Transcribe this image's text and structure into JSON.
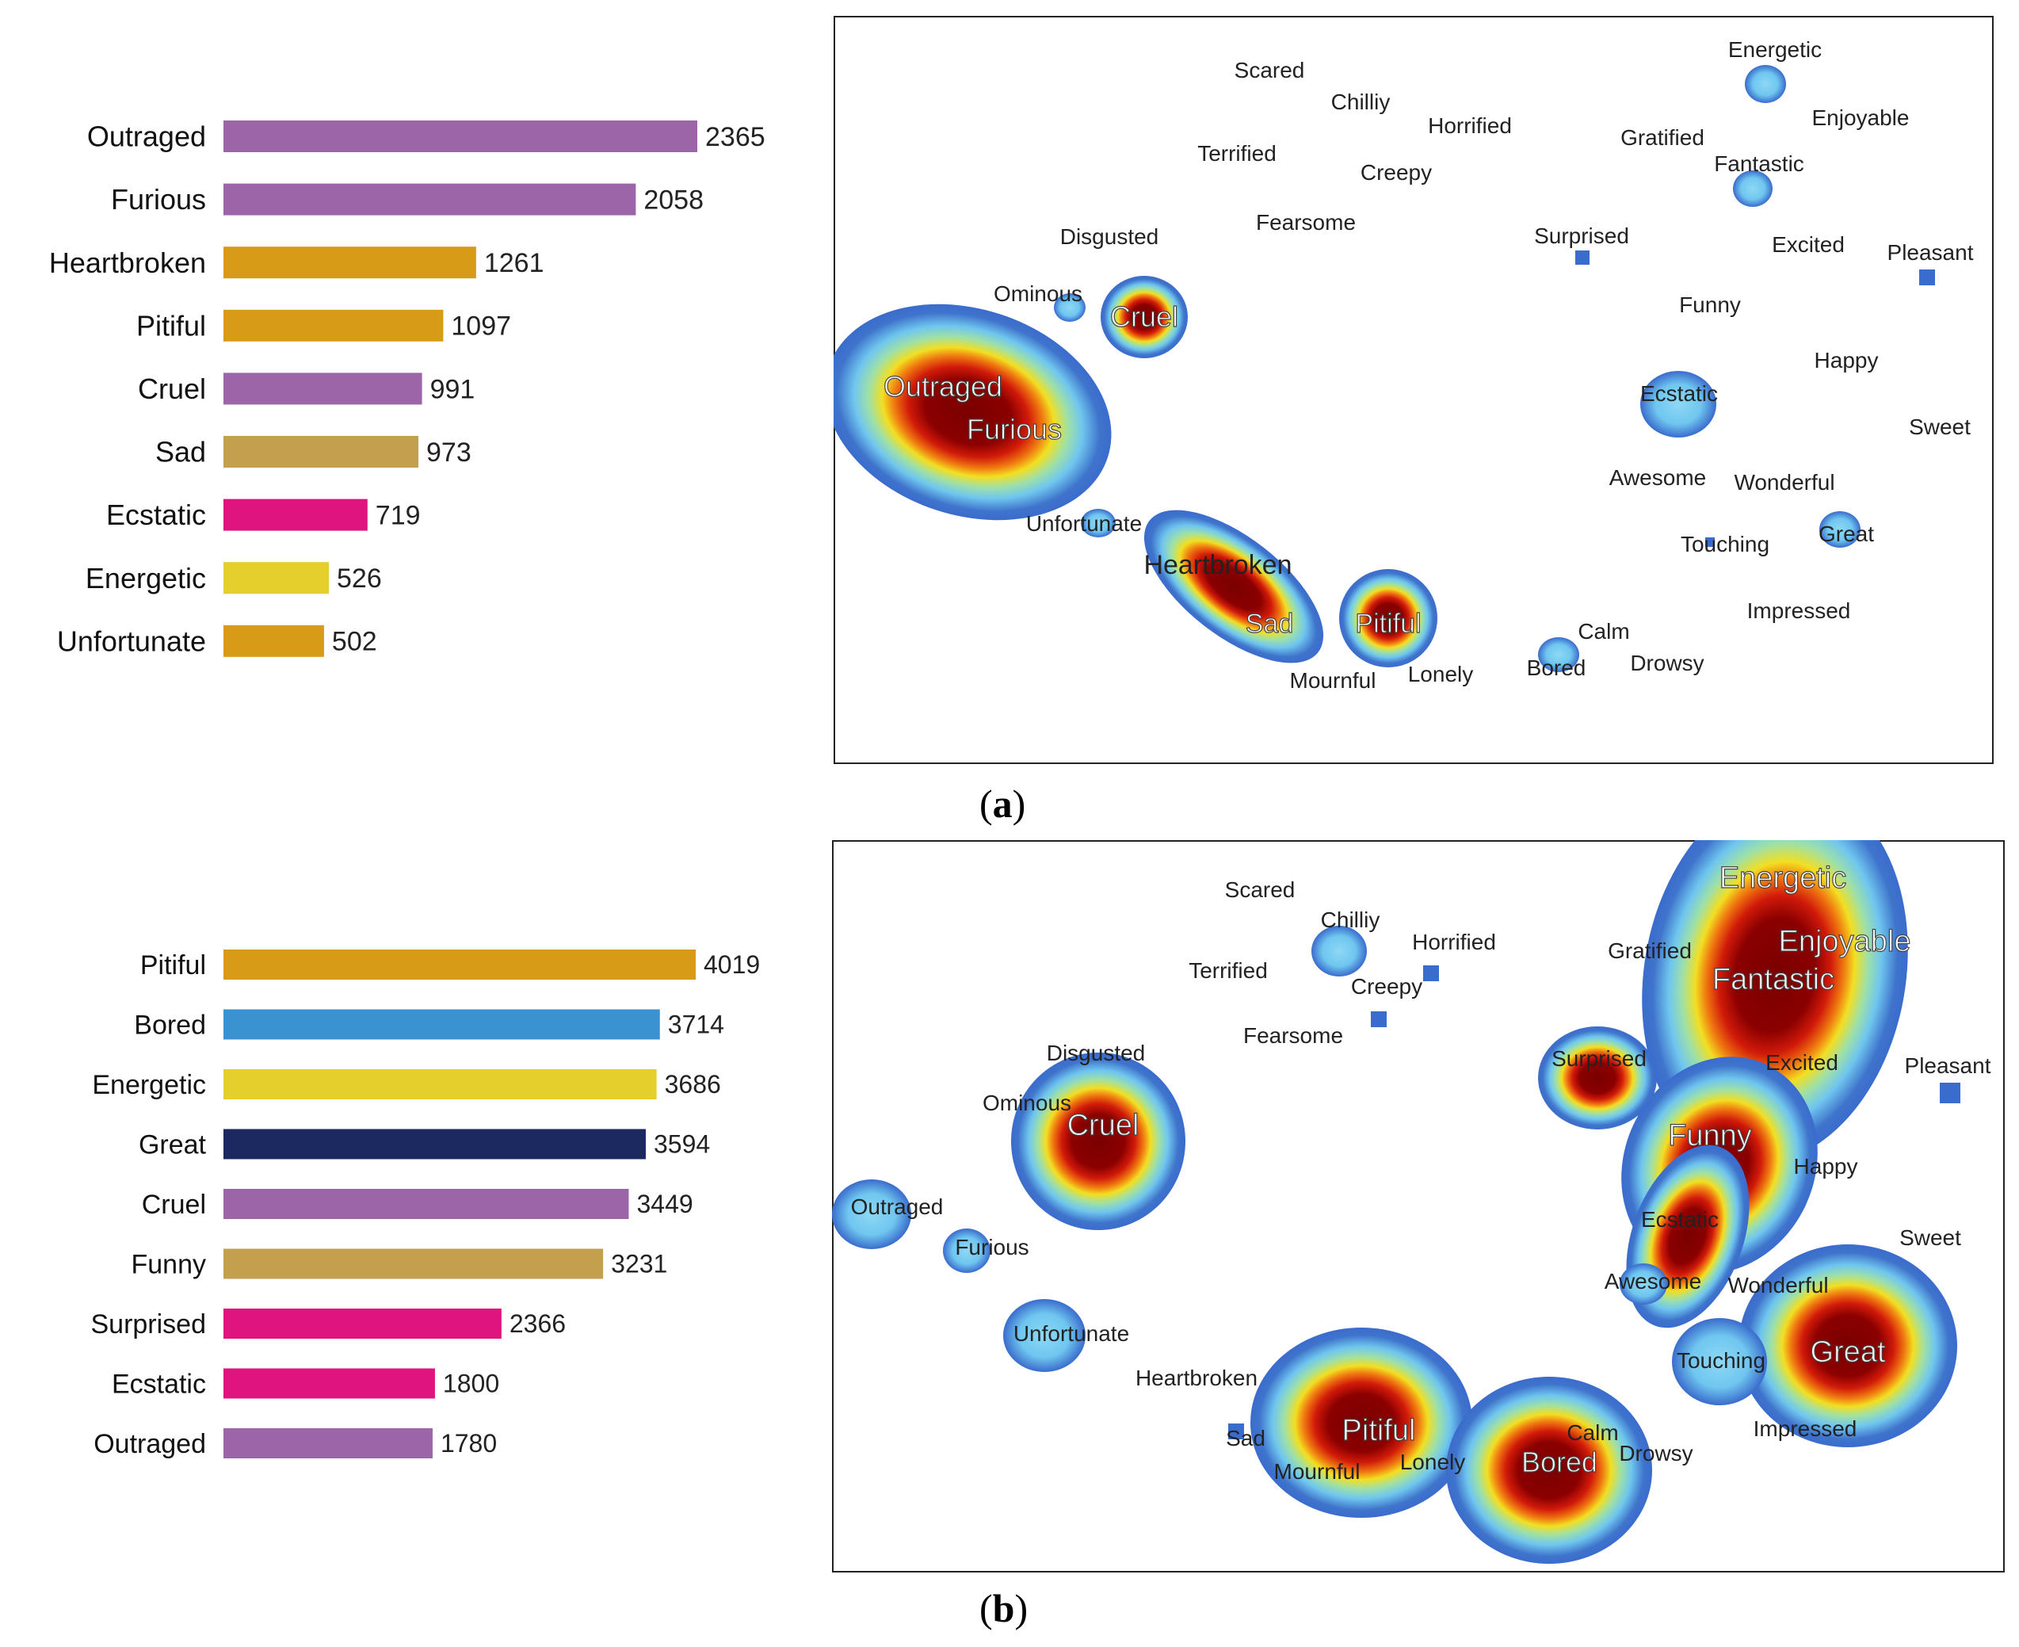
{
  "chart_data": [
    {
      "panel": "a",
      "type": "bar",
      "orientation": "horizontal",
      "categories": [
        "Outraged",
        "Furious",
        "Heartbroken",
        "Pitiful",
        "Cruel",
        "Sad",
        "Ecstatic",
        "Energetic",
        "Unfortunate"
      ],
      "values": [
        2365,
        2058,
        1261,
        1097,
        991,
        973,
        719,
        526,
        502
      ],
      "colors": [
        "#9b65a8",
        "#9b65a8",
        "#d89b18",
        "#d89b18",
        "#9b65a8",
        "#c4a04e",
        "#e0147f",
        "#e5cf2c",
        "#d89b18"
      ],
      "xlim": [
        0,
        2365
      ]
    },
    {
      "panel": "a",
      "type": "heatmap",
      "words": [
        "Scared",
        "Chilliy",
        "Horrified",
        "Terrified",
        "Creepy",
        "Fearsome",
        "Disgusted",
        "Ominous",
        "Cruel",
        "Outraged",
        "Furious",
        "Unfortunate",
        "Heartbroken",
        "Sad",
        "Pitiful",
        "Mournful",
        "Lonely",
        "Bored",
        "Calm",
        "Drowsy",
        "Energetic",
        "Enjoyable",
        "Gratified",
        "Fantastic",
        "Surprised",
        "Excited",
        "Pleasant",
        "Funny",
        "Happy",
        "Ecstatic",
        "Sweet",
        "Awesome",
        "Wonderful",
        "Touching",
        "Great",
        "Impressed"
      ],
      "hotspots": [
        {
          "word": "Outraged",
          "intensity": 2365
        },
        {
          "word": "Furious",
          "intensity": 2058
        },
        {
          "word": "Heartbroken",
          "intensity": 1261
        },
        {
          "word": "Pitiful",
          "intensity": 1097
        },
        {
          "word": "Cruel",
          "intensity": 991
        },
        {
          "word": "Sad",
          "intensity": 973
        },
        {
          "word": "Ecstatic",
          "intensity": 719
        },
        {
          "word": "Energetic",
          "intensity": 526
        },
        {
          "word": "Unfortunate",
          "intensity": 502
        }
      ]
    },
    {
      "panel": "b",
      "type": "bar",
      "orientation": "horizontal",
      "categories": [
        "Pitiful",
        "Bored",
        "Energetic",
        "Great",
        "Cruel",
        "Funny",
        "Surprised",
        "Ecstatic",
        "Outraged"
      ],
      "values": [
        4019,
        3714,
        3686,
        3594,
        3449,
        3231,
        2366,
        1800,
        1780
      ],
      "colors": [
        "#d89b18",
        "#3a93d0",
        "#e5cf2c",
        "#1b2960",
        "#9b65a8",
        "#c4a04e",
        "#e0147f",
        "#e0147f",
        "#9b65a8"
      ],
      "xlim": [
        0,
        4019
      ]
    },
    {
      "panel": "b",
      "type": "heatmap",
      "words": [
        "Scared",
        "Chilliy",
        "Horrified",
        "Terrified",
        "Creepy",
        "Fearsome",
        "Disgusted",
        "Ominous",
        "Cruel",
        "Outraged",
        "Furious",
        "Unfortunate",
        "Heartbroken",
        "Sad",
        "Pitiful",
        "Mournful",
        "Lonely",
        "Bored",
        "Calm",
        "Drowsy",
        "Energetic",
        "Enjoyable",
        "Gratified",
        "Fantastic",
        "Surprised",
        "Excited",
        "Pleasant",
        "Funny",
        "Happy",
        "Ecstatic",
        "Sweet",
        "Awesome",
        "Wonderful",
        "Touching",
        "Great",
        "Impressed"
      ],
      "hotspots": [
        {
          "word": "Pitiful",
          "intensity": 4019
        },
        {
          "word": "Bored",
          "intensity": 3714
        },
        {
          "word": "Energetic",
          "intensity": 3686
        },
        {
          "word": "Great",
          "intensity": 3594
        },
        {
          "word": "Cruel",
          "intensity": 3449
        },
        {
          "word": "Funny",
          "intensity": 3231
        },
        {
          "word": "Surprised",
          "intensity": 2366
        },
        {
          "word": "Ecstatic",
          "intensity": 1800
        },
        {
          "word": "Outraged",
          "intensity": 1780
        }
      ]
    }
  ],
  "captions": {
    "a": "a",
    "b": "b"
  }
}
